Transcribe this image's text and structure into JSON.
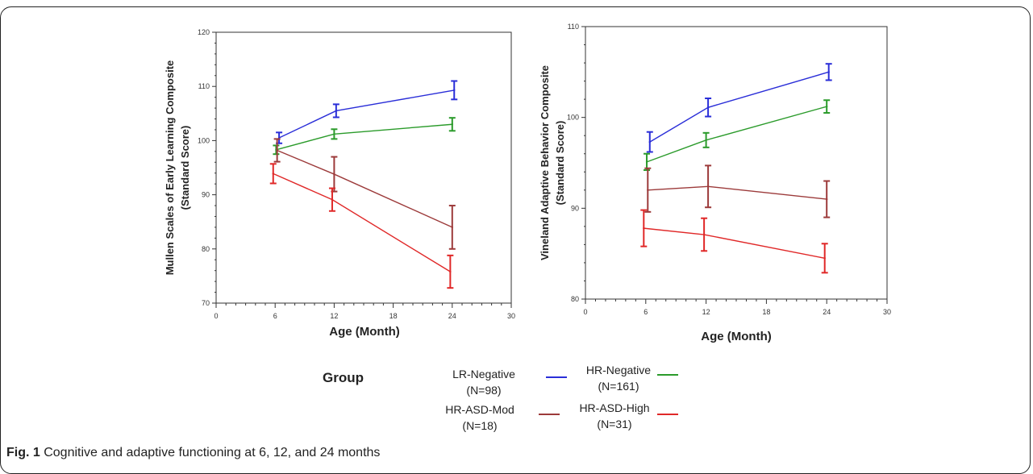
{
  "colors": {
    "LR-Negative": "#2a2ed8",
    "HR-Negative": "#2b9b2b",
    "HR-ASD-Mod": "#9c3a3a",
    "HR-ASD-High": "#e02828",
    "axis": "#333333",
    "tick_text": "#333333"
  },
  "chart_data": [
    {
      "type": "line",
      "ylabel": "Mullen Scales of Early Learning Composite",
      "ylabel2": "(Standard Score)",
      "xlabel": "Age (Month)",
      "xlim": [
        0,
        30
      ],
      "ylim": [
        70,
        120
      ],
      "xticks": [
        "0",
        "6",
        "12",
        "18",
        "24",
        "30"
      ],
      "yticks": [
        "70",
        "80",
        "90",
        "100",
        "110",
        "120"
      ],
      "series": [
        {
          "name": "LR-Negative",
          "x": [
            6.4,
            12.2,
            24.2
          ],
          "y": [
            100.5,
            105.5,
            109.3
          ],
          "err": [
            1.0,
            1.2,
            1.7
          ]
        },
        {
          "name": "HR-Negative",
          "x": [
            6.1,
            12.0,
            24.0
          ],
          "y": [
            98.3,
            101.2,
            103.0
          ],
          "err": [
            0.8,
            0.9,
            1.2
          ]
        },
        {
          "name": "HR-ASD-Mod",
          "x": [
            6.2,
            12.0,
            24.0
          ],
          "y": [
            98.2,
            93.8,
            84.0
          ],
          "err": [
            2.1,
            3.2,
            4.0
          ]
        },
        {
          "name": "HR-ASD-High",
          "x": [
            5.8,
            11.8,
            23.8
          ],
          "y": [
            93.9,
            89.1,
            75.8
          ],
          "err": [
            1.8,
            2.1,
            3.0
          ]
        }
      ]
    },
    {
      "type": "line",
      "ylabel": "Vineland Adaptive Behavior Composite",
      "ylabel2": "(Standard Score)",
      "xlabel": "Age (Month)",
      "xlim": [
        0,
        30
      ],
      "ylim": [
        80,
        110
      ],
      "xticks": [
        "0",
        "6",
        "12",
        "18",
        "24",
        "30"
      ],
      "yticks": [
        "80",
        "90",
        "100",
        "110"
      ],
      "series": [
        {
          "name": "LR-Negative",
          "x": [
            6.4,
            12.2,
            24.2
          ],
          "y": [
            97.3,
            101.1,
            105.0
          ],
          "err": [
            1.1,
            1.0,
            0.9
          ]
        },
        {
          "name": "HR-Negative",
          "x": [
            6.1,
            12.0,
            24.0
          ],
          "y": [
            95.1,
            97.5,
            101.2
          ],
          "err": [
            0.9,
            0.8,
            0.7
          ]
        },
        {
          "name": "HR-ASD-Mod",
          "x": [
            6.2,
            12.2,
            24.0
          ],
          "y": [
            92.0,
            92.4,
            91.0
          ],
          "err": [
            2.4,
            2.3,
            2.0
          ]
        },
        {
          "name": "HR-ASD-High",
          "x": [
            5.8,
            11.8,
            23.8
          ],
          "y": [
            87.8,
            87.1,
            84.5
          ],
          "err": [
            2.0,
            1.8,
            1.6
          ]
        }
      ]
    }
  ],
  "legend": {
    "title": "Group",
    "items": [
      {
        "name": "LR-Negative",
        "n": "(N=98)"
      },
      {
        "name": "HR-Negative",
        "n": "(N=161)"
      },
      {
        "name": "HR-ASD-Mod",
        "n": "(N=18)"
      },
      {
        "name": "HR-ASD-High",
        "n": "(N=31)"
      }
    ]
  },
  "caption": {
    "label": "Fig. 1",
    "text": " Cognitive and adaptive functioning at 6, 12, and 24 months"
  }
}
